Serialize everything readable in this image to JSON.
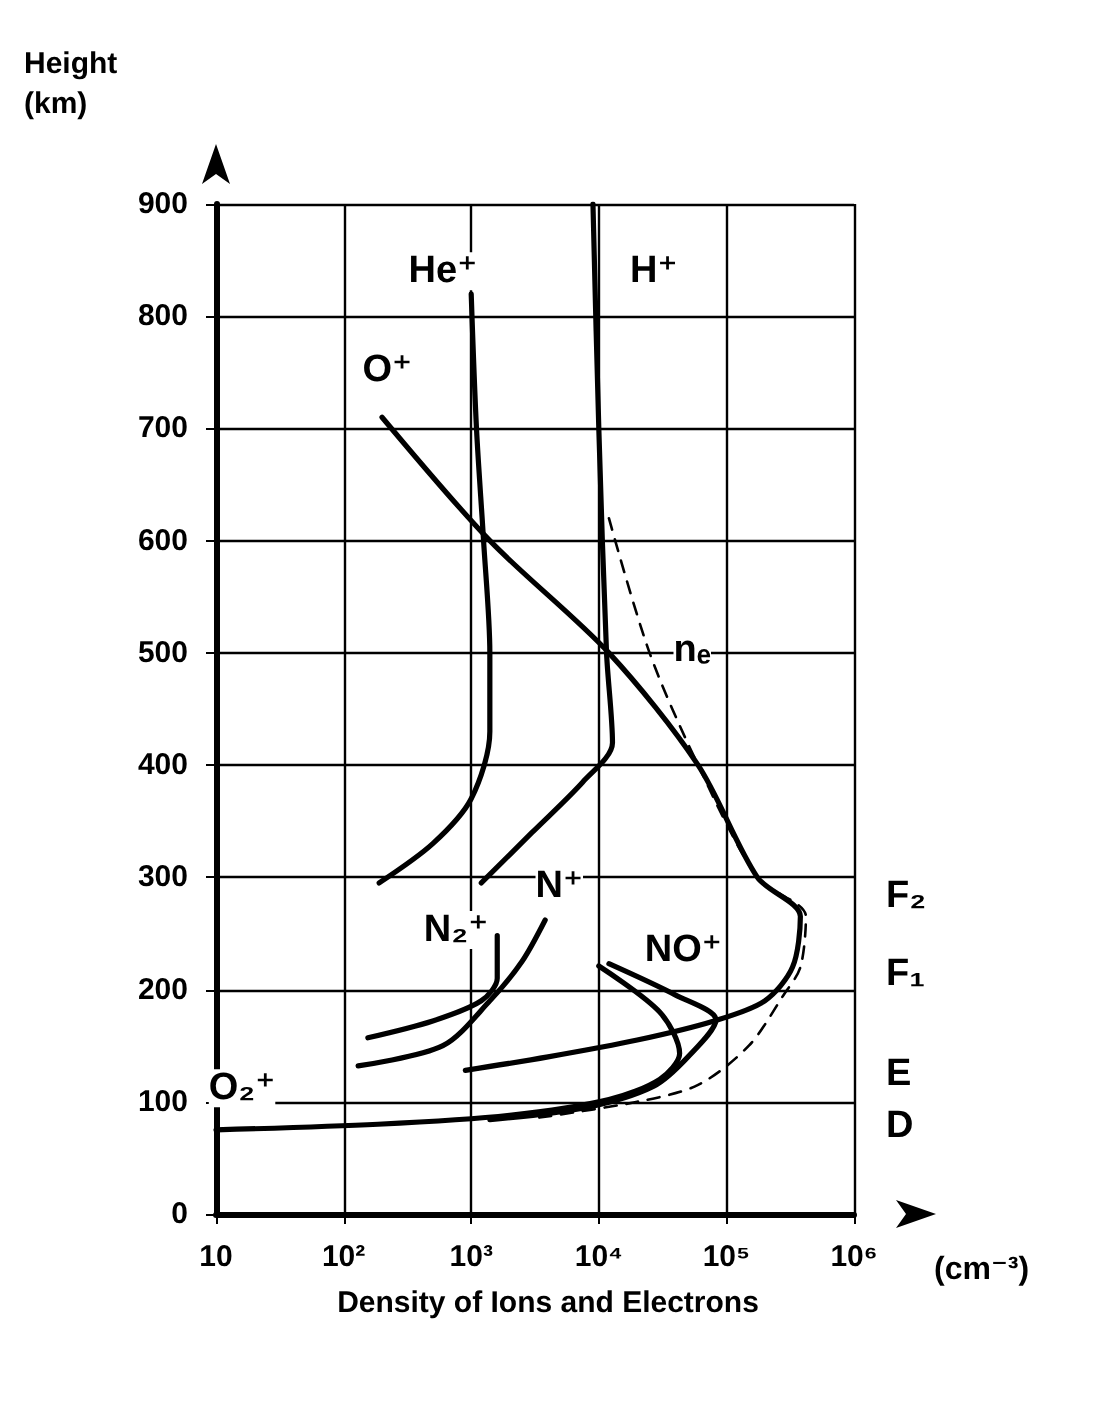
{
  "chart_data": {
    "type": "line",
    "title": "Density of Ions and Electrons",
    "ylabel": "Height\n(km)",
    "xlabel": "(cm⁻³)",
    "log": "x",
    "grid": true,
    "marker": "none",
    "xlim": [
      10,
      1000000
    ],
    "xticks": [
      10,
      {
        "value": 100,
        "label": "10²"
      },
      {
        "value": 1000,
        "label": "10³"
      },
      {
        "value": 10000,
        "label": "10⁴"
      },
      {
        "value": 100000,
        "label": "10⁵"
      },
      {
        "value": 1000000,
        "label": "10⁶"
      }
    ],
    "ylim": [
      0,
      900
    ],
    "yticks": [
      0,
      100,
      200,
      300,
      400,
      500,
      600,
      700,
      800,
      900
    ],
    "series": [
      {
        "color": "#000000",
        "line_style": "solid",
        "x": [
          1000,
          1100,
          1250,
          1400,
          1400,
          1000,
          500,
          190
        ],
        "values": [
          820,
          700,
          600,
          500,
          430,
          370,
          330,
          295
        ]
      },
      {
        "color": "#000000",
        "line_style": "solid",
        "x": [
          9000,
          10000,
          11500,
          12800,
          7500,
          3000,
          1200
        ],
        "values": [
          900,
          700,
          500,
          420,
          385,
          340,
          295
        ]
      },
      {
        "color": "#000000",
        "line_style": "solid",
        "x": [
          200,
          1400,
          12000,
          60000,
          175000,
          380000,
          330000,
          200000,
          80000,
          20000,
          4000,
          900
        ],
        "values": [
          710,
          600,
          500,
          400,
          300,
          265,
          220,
          190,
          172,
          155,
          140,
          128
        ]
      },
      {
        "color": "#000000",
        "line_style": "dashed",
        "x": [
          12000,
          25000,
          60000,
          175000,
          420000,
          380000,
          280000,
          150000,
          60000,
          20000,
          3000
        ],
        "values": [
          620,
          500,
          400,
          300,
          265,
          220,
          195,
          150,
          115,
          100,
          85
        ]
      },
      {
        "color": "#000000",
        "line_style": "solid",
        "x": [
          155,
          500,
          1200,
          1600,
          1600
        ],
        "values": [
          157,
          172,
          190,
          210,
          248
        ]
      },
      {
        "color": "#000000",
        "line_style": "solid",
        "x": [
          130,
          600,
          1400,
          2500,
          3800
        ],
        "values": [
          132,
          150,
          190,
          225,
          262
        ]
      },
      {
        "color": "#000000",
        "line_style": "solid",
        "x": [
          12000,
          40000,
          83000,
          50000,
          27000,
          8000,
          1400
        ],
        "values": [
          223,
          195,
          173,
          140,
          114,
          95,
          84
        ]
      },
      {
        "color": "#000000",
        "line_style": "solid",
        "x": [
          10000,
          30000,
          43000,
          30000,
          12000,
          2000,
          186,
          10
        ],
        "values": [
          221,
          180,
          143,
          120,
          102,
          88,
          80,
          75
        ]
      }
    ],
    "annotations": [
      {
        "text": "He⁺",
        "x": 600,
        "y": 840
      },
      {
        "text": "H⁺",
        "x": 27000,
        "y": 840
      },
      {
        "text": "O⁺",
        "x": 220,
        "y": 752
      },
      {
        "text": "nₑ",
        "x": 54000,
        "y": 503
      },
      {
        "text": "N₂⁺",
        "x": 760,
        "y": 253
      },
      {
        "text": "N⁺",
        "x": 4900,
        "y": 292
      },
      {
        "text": "NO⁺",
        "x": 46000,
        "y": 235
      },
      {
        "text": "O₂⁺",
        "x": 16,
        "y": 112
      },
      "F₂",
      "F₁",
      "E",
      "D"
    ]
  }
}
